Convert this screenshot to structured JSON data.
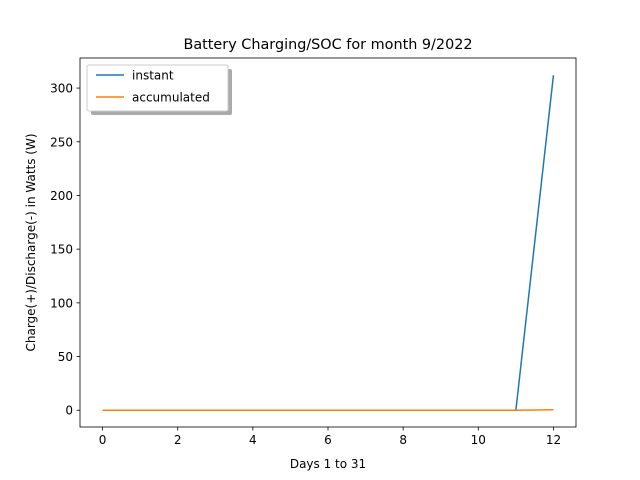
{
  "chart_data": {
    "type": "line",
    "title": "Battery Charging/SOC for month 9/2022",
    "xlabel": "Days 1 to 31",
    "ylabel": "Charge(+)/Discharge(-) in Watts (W)",
    "xlim": [
      -0.6,
      12.6
    ],
    "ylim": [
      -15.6,
      328
    ],
    "xticks": [
      0,
      2,
      4,
      6,
      8,
      10,
      12
    ],
    "xtick_labels": [
      "0",
      "2",
      "4",
      "6",
      "8",
      "10",
      "12"
    ],
    "yticks": [
      0,
      50,
      100,
      150,
      200,
      250,
      300
    ],
    "ytick_labels": [
      "0",
      "50",
      "100",
      "150",
      "200",
      "250",
      "300"
    ],
    "grid": false,
    "legend_placement": "top-left",
    "series": [
      {
        "name": "instant",
        "color": "#1f77b4",
        "x": [
          0,
          1,
          2,
          3,
          4,
          5,
          6,
          7,
          8,
          9,
          10,
          11,
          12
        ],
        "y": [
          0,
          0,
          0,
          0,
          0,
          0,
          0,
          0,
          0,
          0,
          0,
          0,
          312
        ]
      },
      {
        "name": "accumulated",
        "color": "#ff7f0e",
        "x": [
          0,
          1,
          2,
          3,
          4,
          5,
          6,
          7,
          8,
          9,
          10,
          11,
          12
        ],
        "y": [
          0,
          0,
          0,
          0,
          0,
          0,
          0,
          0,
          0,
          0,
          0,
          0,
          0.5
        ]
      }
    ]
  }
}
